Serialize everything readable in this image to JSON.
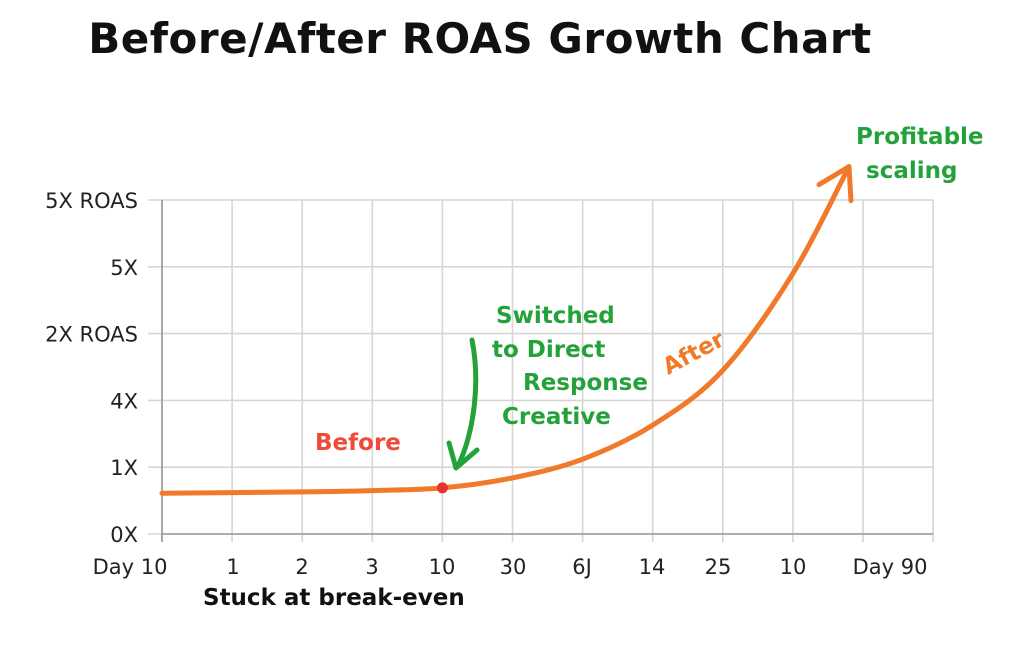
{
  "chart_data": {
    "type": "line",
    "title": "Before/After ROAS Growth Chart",
    "x_tick_labels": [
      "Day 10",
      "1",
      "2",
      "3",
      "10",
      "30",
      "6J",
      "14",
      "25",
      "10",
      "Day 90"
    ],
    "y_tick_labels": [
      "0X",
      "1X",
      "4X",
      "2X ROAS",
      "5X",
      "5X ROAS"
    ],
    "grid": true,
    "series": [
      {
        "color": "#f07a2a",
        "points": [
          {
            "x": 0,
            "y": 0.61
          },
          {
            "x": 1,
            "y": 0.62
          },
          {
            "x": 2,
            "y": 0.63
          },
          {
            "x": 3,
            "y": 0.65
          },
          {
            "x": 4,
            "y": 0.69
          },
          {
            "x": 5,
            "y": 0.84
          },
          {
            "x": 6,
            "y": 1.12
          },
          {
            "x": 7,
            "y": 1.63
          },
          {
            "x": 8,
            "y": 2.45
          },
          {
            "x": 9,
            "y": 3.9
          },
          {
            "x": 9.8,
            "y": 5.5
          }
        ]
      }
    ],
    "marker": {
      "x": 4,
      "y": 0.69,
      "color": "#e8352b"
    },
    "annotations": {
      "before": {
        "text": "Before",
        "color": "#ef4a3a"
      },
      "after": {
        "text": "After",
        "color": "#f07a2a"
      },
      "switch": {
        "lines": [
          "Switched",
          "to Direct",
          "Response",
          "Creative"
        ],
        "color": "#23a23a"
      },
      "profit": {
        "lines": [
          "Profitable",
          "scaling"
        ],
        "color": "#23a23a"
      },
      "stuck": {
        "text": "Stuck at break-even",
        "color": "#111111"
      }
    }
  }
}
